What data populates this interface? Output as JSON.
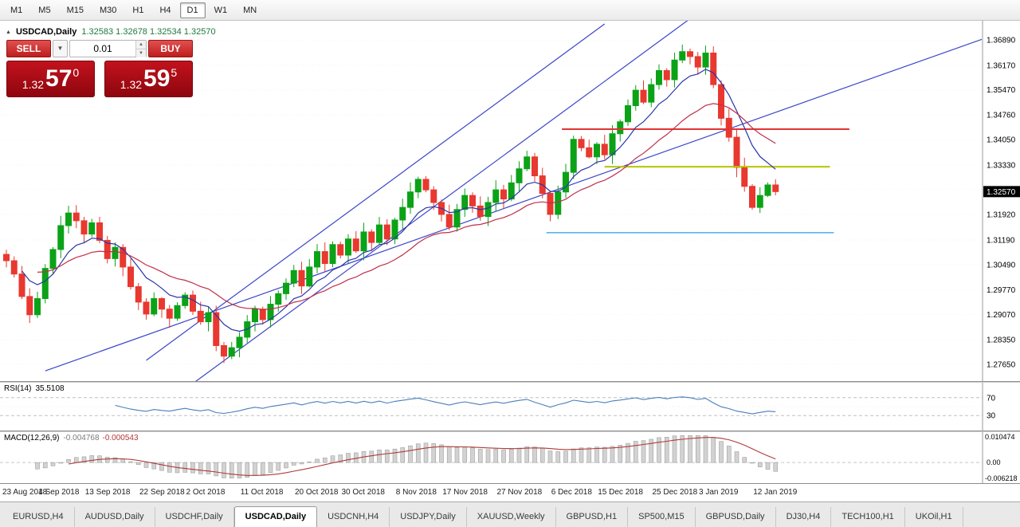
{
  "toolbar": {
    "timeframes": [
      "M1",
      "M5",
      "M15",
      "M30",
      "H1",
      "H4",
      "D1",
      "W1",
      "MN"
    ],
    "active_timeframe": "D1"
  },
  "chart": {
    "title_symbol": "USDCAD,Daily",
    "title_ohlc": "1.32583 1.32678 1.32534 1.32570",
    "current_price": "1.32570",
    "price_scale": [
      "1.36890",
      "1.36170",
      "1.35470",
      "1.34760",
      "1.34050",
      "1.33330",
      "1.32630",
      "1.31920",
      "1.31190",
      "1.30490",
      "1.29770",
      "1.29070",
      "1.28350",
      "1.27650"
    ]
  },
  "trade_panel": {
    "sell_button": "SELL",
    "buy_button": "BUY",
    "volume": "0.01",
    "sell": {
      "prefix": "1.32",
      "big": "57",
      "sup": "0"
    },
    "buy": {
      "prefix": "1.32",
      "big": "59",
      "sup": "5"
    }
  },
  "rsi": {
    "name": "RSI(14)",
    "value": "35.5108",
    "levels": [
      70,
      30
    ],
    "color": "#4a7ebb"
  },
  "macd": {
    "name": "MACD(12,26,9)",
    "value_main": "-0.004768",
    "value_signal": "-0.000543",
    "scale": [
      "0.010474",
      "0.00",
      "-0.006218"
    ],
    "signal_color": "#b03a3a"
  },
  "icons": {
    "chart_arrow": "▲",
    "dropdown": "▼",
    "spin_up": "▲",
    "spin_down": "▼"
  },
  "tabs": {
    "items": [
      "EURUSD,H4",
      "AUDUSD,Daily",
      "USDCHF,Daily",
      "USDCAD,Daily",
      "USDCNH,H4",
      "USDJPY,Daily",
      "XAUUSD,Weekly",
      "GBPUSD,H1",
      "SP500,M15",
      "GBPUSD,Daily",
      "DJ30,H4",
      "TECH100,H1",
      "UKOil,H1"
    ],
    "active_index": 3
  },
  "chart_data": {
    "type": "candlestick",
    "symbol": "USDCAD",
    "timeframe": "Daily",
    "price_min": 1.2735,
    "price_max": 1.3735,
    "open_rule": "previous_close",
    "closes": [
      1.306,
      1.3022,
      1.2958,
      1.2906,
      1.2952,
      1.3038,
      1.3092,
      1.316,
      1.3196,
      1.3174,
      1.3136,
      1.3168,
      1.3118,
      1.3066,
      1.3098,
      1.3042,
      1.2986,
      1.2942,
      1.2908,
      1.2952,
      1.2922,
      1.2896,
      1.2932,
      1.2962,
      1.2916,
      1.2886,
      1.2912,
      1.2818,
      1.2788,
      1.2812,
      1.2842,
      1.2886,
      1.2922,
      1.2892,
      1.2936,
      1.2966,
      1.2996,
      1.3032,
      1.2988,
      1.3042,
      1.3086,
      1.3052,
      1.3106,
      1.3076,
      1.3122,
      1.3088,
      1.3142,
      1.3112,
      1.3162,
      1.3122,
      1.3176,
      1.3212,
      1.3256,
      1.3292,
      1.3262,
      1.3226,
      1.3192,
      1.3156,
      1.3206,
      1.3246,
      1.3216,
      1.3186,
      1.3226,
      1.3262,
      1.3236,
      1.3282,
      1.3322,
      1.3356,
      1.3302,
      1.3252,
      1.3192,
      1.3256,
      1.3312,
      1.3406,
      1.3382,
      1.3356,
      1.3392,
      1.3362,
      1.3422,
      1.3456,
      1.3502,
      1.3546,
      1.3512,
      1.3562,
      1.3602,
      1.3576,
      1.3632,
      1.3656,
      1.3642,
      1.3612,
      1.3652,
      1.3562,
      1.3466,
      1.3412,
      1.3326,
      1.3272,
      1.3212,
      1.3246,
      1.3276,
      1.3257
    ],
    "date_labels": [
      "23 Aug 2018",
      "4 Sep 2018",
      "13 Sep 2018",
      "22 Sep 2018",
      "2 Oct 2018",
      "11 Oct 2018",
      "20 Oct 2018",
      "30 Oct 2018",
      "8 Nov 2018",
      "17 Nov 2018",
      "27 Nov 2018",
      "6 Dec 2018",
      "15 Dec 2018",
      "25 Dec 2018",
      "3 Jan 2019",
      "12 Jan 2019"
    ],
    "date_label_indices": [
      0,
      7,
      13,
      20,
      26,
      33,
      40,
      46,
      53,
      59,
      66,
      73,
      79,
      86,
      92,
      99
    ],
    "colors": {
      "up": "#0ba217",
      "down": "#e8382f"
    },
    "ma_fast": {
      "type": "ema",
      "period": 8,
      "color": "#2b35a8"
    },
    "ma_slow": {
      "type": "ema",
      "period": 21,
      "color": "#bf2f4b"
    },
    "trendlines": [
      {
        "i1": 5,
        "p1": 1.2746,
        "i2": 130,
        "p2": 1.3726,
        "color": "#3a46c8"
      },
      {
        "i1": 24,
        "p1": 1.271,
        "i2": 88,
        "p2": 1.375,
        "color": "#3a46c8"
      },
      {
        "i1": 18,
        "p1": 1.2776,
        "i2": 77,
        "p2": 1.3735,
        "color": "#3a46c8"
      }
    ],
    "hlines": [
      {
        "price": 1.3435,
        "i1": 71.5,
        "i2": 108.5,
        "color": "#e23434",
        "width": 2
      },
      {
        "price": 1.3328,
        "i1": 77,
        "i2": 106,
        "color": "#b8c400",
        "width": 2
      },
      {
        "price": 1.314,
        "i1": 69.5,
        "i2": 106.5,
        "color": "#5ab4f0",
        "width": 1.6
      }
    ],
    "macd_scale_max": 0.010474,
    "macd_scale_min": -0.006218
  }
}
